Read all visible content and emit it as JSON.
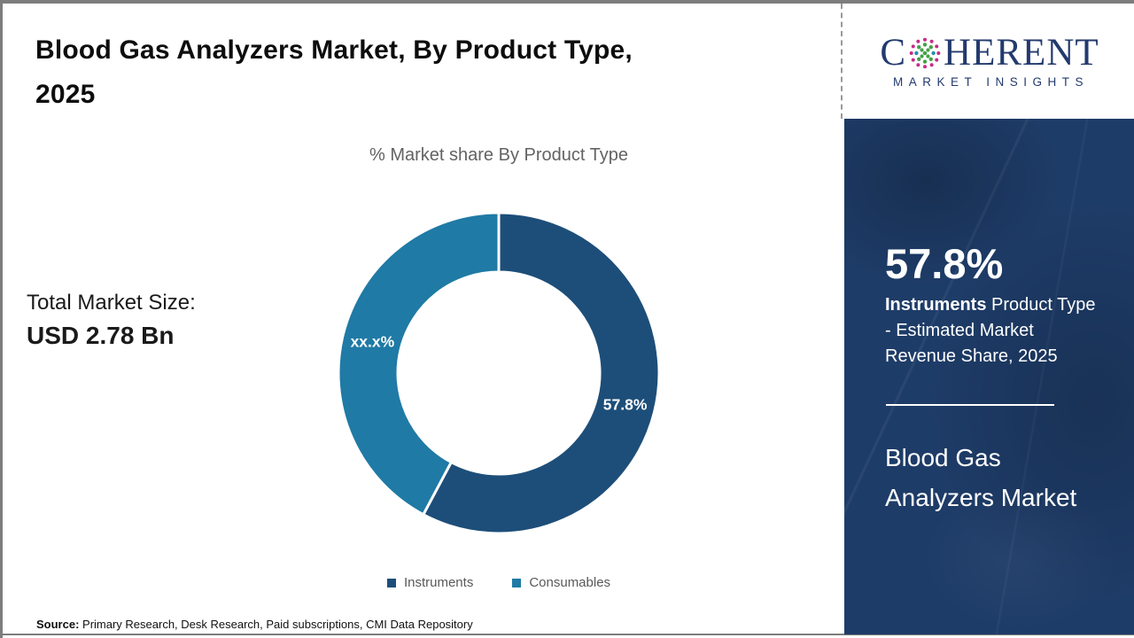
{
  "header": {
    "title_line1": "Blood Gas Analyzers Market, By Product Type,",
    "title_line2": "2025"
  },
  "logo": {
    "brand_first": "C",
    "brand_rest": "HERENT",
    "tagline": "MARKET INSIGHTS",
    "navy": "#233a6e",
    "globe_colors": {
      "outer": "#c42c87",
      "inner": "#43a047",
      "equator": "#2191ad"
    }
  },
  "chart_area": {
    "subtitle": "% Market share By Product Type",
    "total_label": "Total Market Size:",
    "total_value": "USD 2.78 Bn"
  },
  "chart_data": {
    "type": "pie",
    "donut": true,
    "title": "% Market share By Product Type",
    "start_angle_deg": 0,
    "direction": "clockwise",
    "legend_position": "bottom",
    "slices": [
      {
        "name": "Instruments",
        "value": 57.8,
        "label": "57.8%",
        "color": "#1d4e79"
      },
      {
        "name": "Consumables",
        "value": 42.2,
        "label": "xx.x%",
        "color": "#1f7aa5"
      }
    ]
  },
  "sidebar": {
    "stat_value": "57.8%",
    "stat_bold": "Instruments",
    "stat_rest": " Product Type - Estimated Market Revenue Share, 2025",
    "market_name": "Blood Gas Analyzers Market"
  },
  "footer": {
    "source_label": "Source:",
    "source_text": " Primary Research, Desk Research, Paid subscriptions, CMI Data Repository"
  }
}
